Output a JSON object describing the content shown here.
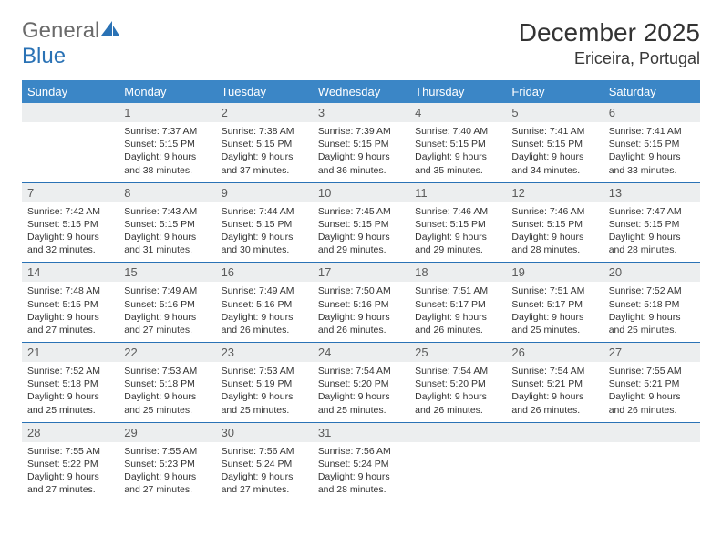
{
  "logo": {
    "text1": "General",
    "text2": "Blue"
  },
  "title": "December 2025",
  "location": "Ericeira, Portugal",
  "colors": {
    "header_bg": "#3b86c6",
    "border": "#2a72b5",
    "daynum_bg": "#eceeef",
    "logo_gray": "#6a6a6a",
    "logo_blue": "#2a72b5"
  },
  "weekdays": [
    "Sunday",
    "Monday",
    "Tuesday",
    "Wednesday",
    "Thursday",
    "Friday",
    "Saturday"
  ],
  "weeks": [
    [
      {
        "day": "",
        "sunrise": "",
        "sunset": "",
        "daylight": ""
      },
      {
        "day": "1",
        "sunrise": "Sunrise: 7:37 AM",
        "sunset": "Sunset: 5:15 PM",
        "daylight": "Daylight: 9 hours and 38 minutes."
      },
      {
        "day": "2",
        "sunrise": "Sunrise: 7:38 AM",
        "sunset": "Sunset: 5:15 PM",
        "daylight": "Daylight: 9 hours and 37 minutes."
      },
      {
        "day": "3",
        "sunrise": "Sunrise: 7:39 AM",
        "sunset": "Sunset: 5:15 PM",
        "daylight": "Daylight: 9 hours and 36 minutes."
      },
      {
        "day": "4",
        "sunrise": "Sunrise: 7:40 AM",
        "sunset": "Sunset: 5:15 PM",
        "daylight": "Daylight: 9 hours and 35 minutes."
      },
      {
        "day": "5",
        "sunrise": "Sunrise: 7:41 AM",
        "sunset": "Sunset: 5:15 PM",
        "daylight": "Daylight: 9 hours and 34 minutes."
      },
      {
        "day": "6",
        "sunrise": "Sunrise: 7:41 AM",
        "sunset": "Sunset: 5:15 PM",
        "daylight": "Daylight: 9 hours and 33 minutes."
      }
    ],
    [
      {
        "day": "7",
        "sunrise": "Sunrise: 7:42 AM",
        "sunset": "Sunset: 5:15 PM",
        "daylight": "Daylight: 9 hours and 32 minutes."
      },
      {
        "day": "8",
        "sunrise": "Sunrise: 7:43 AM",
        "sunset": "Sunset: 5:15 PM",
        "daylight": "Daylight: 9 hours and 31 minutes."
      },
      {
        "day": "9",
        "sunrise": "Sunrise: 7:44 AM",
        "sunset": "Sunset: 5:15 PM",
        "daylight": "Daylight: 9 hours and 30 minutes."
      },
      {
        "day": "10",
        "sunrise": "Sunrise: 7:45 AM",
        "sunset": "Sunset: 5:15 PM",
        "daylight": "Daylight: 9 hours and 29 minutes."
      },
      {
        "day": "11",
        "sunrise": "Sunrise: 7:46 AM",
        "sunset": "Sunset: 5:15 PM",
        "daylight": "Daylight: 9 hours and 29 minutes."
      },
      {
        "day": "12",
        "sunrise": "Sunrise: 7:46 AM",
        "sunset": "Sunset: 5:15 PM",
        "daylight": "Daylight: 9 hours and 28 minutes."
      },
      {
        "day": "13",
        "sunrise": "Sunrise: 7:47 AM",
        "sunset": "Sunset: 5:15 PM",
        "daylight": "Daylight: 9 hours and 28 minutes."
      }
    ],
    [
      {
        "day": "14",
        "sunrise": "Sunrise: 7:48 AM",
        "sunset": "Sunset: 5:15 PM",
        "daylight": "Daylight: 9 hours and 27 minutes."
      },
      {
        "day": "15",
        "sunrise": "Sunrise: 7:49 AM",
        "sunset": "Sunset: 5:16 PM",
        "daylight": "Daylight: 9 hours and 27 minutes."
      },
      {
        "day": "16",
        "sunrise": "Sunrise: 7:49 AM",
        "sunset": "Sunset: 5:16 PM",
        "daylight": "Daylight: 9 hours and 26 minutes."
      },
      {
        "day": "17",
        "sunrise": "Sunrise: 7:50 AM",
        "sunset": "Sunset: 5:16 PM",
        "daylight": "Daylight: 9 hours and 26 minutes."
      },
      {
        "day": "18",
        "sunrise": "Sunrise: 7:51 AM",
        "sunset": "Sunset: 5:17 PM",
        "daylight": "Daylight: 9 hours and 26 minutes."
      },
      {
        "day": "19",
        "sunrise": "Sunrise: 7:51 AM",
        "sunset": "Sunset: 5:17 PM",
        "daylight": "Daylight: 9 hours and 25 minutes."
      },
      {
        "day": "20",
        "sunrise": "Sunrise: 7:52 AM",
        "sunset": "Sunset: 5:18 PM",
        "daylight": "Daylight: 9 hours and 25 minutes."
      }
    ],
    [
      {
        "day": "21",
        "sunrise": "Sunrise: 7:52 AM",
        "sunset": "Sunset: 5:18 PM",
        "daylight": "Daylight: 9 hours and 25 minutes."
      },
      {
        "day": "22",
        "sunrise": "Sunrise: 7:53 AM",
        "sunset": "Sunset: 5:18 PM",
        "daylight": "Daylight: 9 hours and 25 minutes."
      },
      {
        "day": "23",
        "sunrise": "Sunrise: 7:53 AM",
        "sunset": "Sunset: 5:19 PM",
        "daylight": "Daylight: 9 hours and 25 minutes."
      },
      {
        "day": "24",
        "sunrise": "Sunrise: 7:54 AM",
        "sunset": "Sunset: 5:20 PM",
        "daylight": "Daylight: 9 hours and 25 minutes."
      },
      {
        "day": "25",
        "sunrise": "Sunrise: 7:54 AM",
        "sunset": "Sunset: 5:20 PM",
        "daylight": "Daylight: 9 hours and 26 minutes."
      },
      {
        "day": "26",
        "sunrise": "Sunrise: 7:54 AM",
        "sunset": "Sunset: 5:21 PM",
        "daylight": "Daylight: 9 hours and 26 minutes."
      },
      {
        "day": "27",
        "sunrise": "Sunrise: 7:55 AM",
        "sunset": "Sunset: 5:21 PM",
        "daylight": "Daylight: 9 hours and 26 minutes."
      }
    ],
    [
      {
        "day": "28",
        "sunrise": "Sunrise: 7:55 AM",
        "sunset": "Sunset: 5:22 PM",
        "daylight": "Daylight: 9 hours and 27 minutes."
      },
      {
        "day": "29",
        "sunrise": "Sunrise: 7:55 AM",
        "sunset": "Sunset: 5:23 PM",
        "daylight": "Daylight: 9 hours and 27 minutes."
      },
      {
        "day": "30",
        "sunrise": "Sunrise: 7:56 AM",
        "sunset": "Sunset: 5:24 PM",
        "daylight": "Daylight: 9 hours and 27 minutes."
      },
      {
        "day": "31",
        "sunrise": "Sunrise: 7:56 AM",
        "sunset": "Sunset: 5:24 PM",
        "daylight": "Daylight: 9 hours and 28 minutes."
      },
      {
        "day": "",
        "sunrise": "",
        "sunset": "",
        "daylight": ""
      },
      {
        "day": "",
        "sunrise": "",
        "sunset": "",
        "daylight": ""
      },
      {
        "day": "",
        "sunrise": "",
        "sunset": "",
        "daylight": ""
      }
    ]
  ]
}
